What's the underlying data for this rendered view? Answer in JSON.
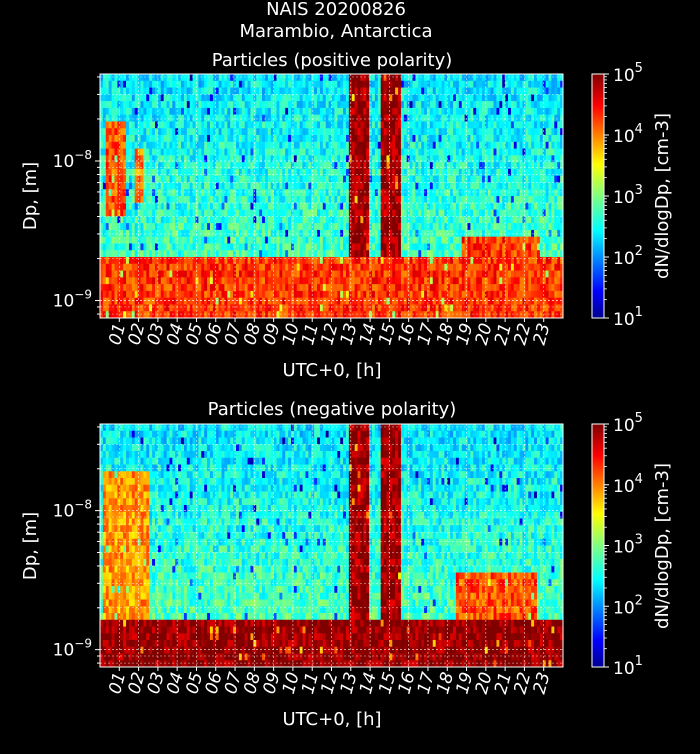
{
  "figure": {
    "title_line1": "NAIS 20200826",
    "title_line2": "Marambio, Antarctica"
  },
  "colors": {
    "background": "#000000",
    "text": "#ffffff",
    "grid": "#ffffff",
    "colormap": "jet"
  },
  "chart_data": [
    {
      "type": "heatmap",
      "title": "Particles (positive polarity)",
      "xlabel": "UTC+0, [h]",
      "ylabel": "Dp, [m]",
      "x_ticks": [
        "01",
        "02",
        "03",
        "04",
        "05",
        "06",
        "07",
        "08",
        "09",
        "10",
        "11",
        "12",
        "13",
        "14",
        "15",
        "16",
        "17",
        "18",
        "19",
        "20",
        "21",
        "22",
        "23"
      ],
      "xlim": [
        0,
        24
      ],
      "y_scale": "log",
      "ylim": [
        7.5e-10,
        4.2e-08
      ],
      "y_ticks": [
        {
          "value": 1e-09,
          "base": "10",
          "exp": "−9"
        },
        {
          "value": 1e-08,
          "base": "10",
          "exp": "−8"
        }
      ],
      "colorbar": {
        "label": "dN/dlogDp, [cm-3]",
        "scale": "log",
        "range": [
          10,
          100000
        ],
        "ticks": [
          {
            "base": "10",
            "exp": "1"
          },
          {
            "base": "10",
            "exp": "2"
          },
          {
            "base": "10",
            "exp": "3"
          },
          {
            "base": "10",
            "exp": "4"
          },
          {
            "base": "10",
            "exp": "5"
          }
        ]
      },
      "grid": true,
      "features": [
        {
          "name": "small-ion band",
          "dp_range": [
            7.5e-10,
            2e-09
          ],
          "hours": [
            0,
            24
          ],
          "level": 20000
        },
        {
          "name": "morning event",
          "dp_range": [
            4e-09,
            2e-08
          ],
          "hours": [
            0.3,
            1.4
          ],
          "level": 15000
        },
        {
          "name": "early morning event",
          "dp_range": [
            5e-09,
            1.2e-08
          ],
          "hours": [
            1.8,
            2.2
          ],
          "level": 10000
        },
        {
          "name": "midday burst",
          "dp_range": [
            2e-09,
            4.2e-08
          ],
          "hours": [
            12.9,
            14.0
          ],
          "level": 80000
        },
        {
          "name": "midday burst",
          "dp_range": [
            2e-09,
            4.2e-08
          ],
          "hours": [
            14.5,
            15.6
          ],
          "level": 80000
        },
        {
          "name": "evening enhancement",
          "dp_range": [
            1.1e-09,
            3e-09
          ],
          "hours": [
            18.8,
            22.8
          ],
          "level": 20000
        }
      ]
    },
    {
      "type": "heatmap",
      "title": "Particles (negative polarity)",
      "xlabel": "UTC+0, [h]",
      "ylabel": "Dp, [m]",
      "x_ticks": [
        "01",
        "02",
        "03",
        "04",
        "05",
        "06",
        "07",
        "08",
        "09",
        "10",
        "11",
        "12",
        "13",
        "14",
        "15",
        "16",
        "17",
        "18",
        "19",
        "20",
        "21",
        "22",
        "23"
      ],
      "xlim": [
        0,
        24
      ],
      "y_scale": "log",
      "ylim": [
        7.5e-10,
        4.2e-08
      ],
      "y_ticks": [
        {
          "value": 1e-09,
          "base": "10",
          "exp": "−9"
        },
        {
          "value": 1e-08,
          "base": "10",
          "exp": "−8"
        }
      ],
      "colorbar": {
        "label": "dN/dlogDp, [cm-3]",
        "scale": "log",
        "range": [
          10,
          100000
        ],
        "ticks": [
          {
            "base": "10",
            "exp": "1"
          },
          {
            "base": "10",
            "exp": "2"
          },
          {
            "base": "10",
            "exp": "3"
          },
          {
            "base": "10",
            "exp": "4"
          },
          {
            "base": "10",
            "exp": "5"
          }
        ]
      },
      "grid": true,
      "features": [
        {
          "name": "small-ion band",
          "dp_range": [
            7.5e-10,
            1.6e-09
          ],
          "hours": [
            0,
            24
          ],
          "level": 90000
        },
        {
          "name": "morning event",
          "dp_range": [
            1.6e-09,
            2e-08
          ],
          "hours": [
            0.2,
            2.6
          ],
          "level": 8000
        },
        {
          "name": "midday burst",
          "dp_range": [
            1.6e-09,
            4.2e-08
          ],
          "hours": [
            12.9,
            14.0
          ],
          "level": 80000
        },
        {
          "name": "midday burst",
          "dp_range": [
            1.6e-09,
            4.2e-08
          ],
          "hours": [
            14.5,
            15.6
          ],
          "level": 80000
        },
        {
          "name": "evening enhancement",
          "dp_range": [
            1.6e-09,
            3.5e-09
          ],
          "hours": [
            18.5,
            22.6
          ],
          "level": 15000
        }
      ]
    }
  ]
}
